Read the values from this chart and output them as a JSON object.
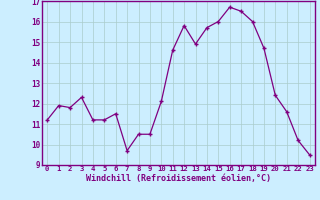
{
  "x": [
    0,
    1,
    2,
    3,
    4,
    5,
    6,
    7,
    8,
    9,
    10,
    11,
    12,
    13,
    14,
    15,
    16,
    17,
    18,
    19,
    20,
    21,
    22,
    23
  ],
  "y": [
    11.2,
    11.9,
    11.8,
    12.3,
    11.2,
    11.2,
    11.5,
    9.7,
    10.5,
    10.5,
    12.1,
    14.6,
    15.8,
    14.9,
    15.7,
    16.0,
    16.7,
    16.5,
    16.0,
    14.7,
    12.4,
    11.6,
    10.2,
    9.5
  ],
  "xlabel": "Windchill (Refroidissement éolien,°C)",
  "ylim": [
    9,
    17
  ],
  "xlim": [
    -0.5,
    23.5
  ],
  "yticks": [
    9,
    10,
    11,
    12,
    13,
    14,
    15,
    16,
    17
  ],
  "xtick_labels": [
    "0",
    "1",
    "2",
    "3",
    "4",
    "5",
    "6",
    "7",
    "8",
    "9",
    "10",
    "11",
    "12",
    "13",
    "14",
    "15",
    "16",
    "17",
    "18",
    "19",
    "20",
    "21",
    "22",
    "23"
  ],
  "line_color": "#800080",
  "marker_color": "#800080",
  "bg_color": "#cceeff",
  "grid_color": "#aacccc",
  "xlabel_color": "#800080",
  "tick_color": "#800080"
}
